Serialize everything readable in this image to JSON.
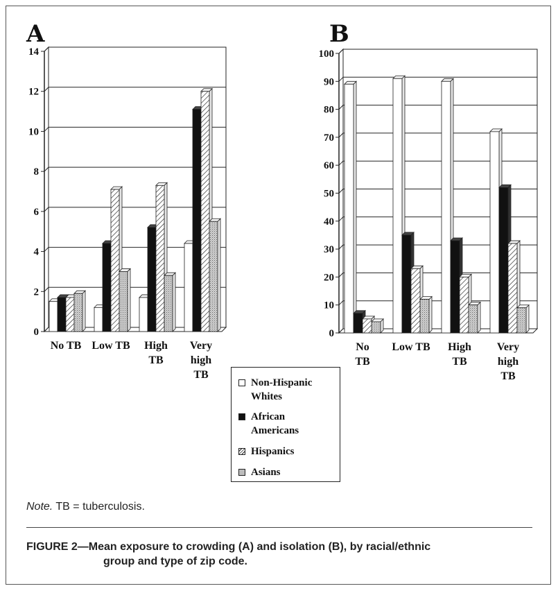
{
  "legend": {
    "items": [
      {
        "label_line1": "Non-Hispanic",
        "label_line2": "Whites",
        "fill": "#ffffff"
      },
      {
        "label_line1": "African",
        "label_line2": "Americans",
        "fill": "#111111"
      },
      {
        "label_line1": "Hispanics",
        "label_line2": "",
        "fill": "hatch"
      },
      {
        "label_line1": "Asians",
        "label_line2": "",
        "fill": "dots"
      }
    ]
  },
  "note": {
    "prefix": "Note.",
    "text": " TB = tuberculosis."
  },
  "caption": {
    "line1": "FIGURE 2—Mean exposure to crowding (A) and isolation (B), by racial/ethnic",
    "line2": "group and type of zip code."
  },
  "chart_data": [
    {
      "type": "bar",
      "panel_label": "A",
      "categories": [
        [
          "No TB"
        ],
        [
          "Low TB"
        ],
        [
          "High",
          "TB"
        ],
        [
          "Very",
          "high",
          "TB"
        ]
      ],
      "ylim": [
        0,
        14
      ],
      "yticks": [
        0,
        2,
        4,
        6,
        8,
        10,
        12,
        14
      ],
      "grid": true,
      "series": [
        {
          "name": "Non-Hispanic Whites",
          "values": [
            1.5,
            1.2,
            1.7,
            4.4
          ]
        },
        {
          "name": "African Americans",
          "values": [
            1.7,
            4.4,
            5.2,
            11.1
          ]
        },
        {
          "name": "Hispanics",
          "values": [
            1.7,
            7.1,
            7.3,
            12.0
          ]
        },
        {
          "name": "Asians",
          "values": [
            1.9,
            3.0,
            2.8,
            5.5
          ]
        }
      ]
    },
    {
      "type": "bar",
      "panel_label": "B",
      "categories": [
        [
          "No",
          "TB"
        ],
        [
          "Low TB"
        ],
        [
          "High",
          "TB"
        ],
        [
          "Very",
          "high",
          "TB"
        ]
      ],
      "ylim": [
        0,
        100
      ],
      "yticks": [
        0,
        10,
        20,
        30,
        40,
        50,
        60,
        70,
        80,
        90,
        100
      ],
      "grid": true,
      "series": [
        {
          "name": "Non-Hispanic Whites",
          "values": [
            89,
            91,
            90,
            72
          ]
        },
        {
          "name": "African Americans",
          "values": [
            7,
            35,
            33,
            52
          ]
        },
        {
          "name": "Hispanics",
          "values": [
            5,
            23,
            20,
            32
          ]
        },
        {
          "name": "Asians",
          "values": [
            4,
            12,
            10,
            9
          ]
        }
      ]
    }
  ]
}
